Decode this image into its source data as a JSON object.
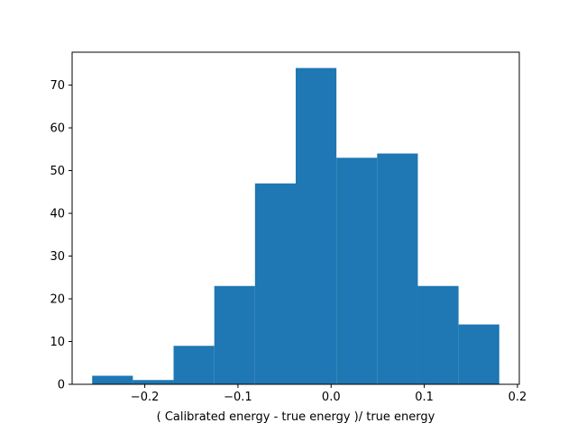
{
  "chart_data": {
    "type": "bar",
    "title": "",
    "xlabel": "( Calibrated energy - true energy )/ true energy",
    "ylabel": "",
    "bin_edges": [
      -0.2565,
      -0.2128,
      -0.1691,
      -0.1254,
      -0.0817,
      -0.038,
      0.0057,
      0.0494,
      0.0931,
      0.1368,
      0.1805
    ],
    "values": [
      2,
      1,
      9,
      23,
      47,
      74,
      53,
      54,
      23,
      14
    ],
    "xlim": [
      -0.278,
      0.202
    ],
    "ylim": [
      0,
      77.7
    ],
    "x_ticks": [
      -0.2,
      -0.1,
      0.0,
      0.1,
      0.2
    ],
    "x_tick_labels": [
      "−0.2",
      "−0.1",
      "0.0",
      "0.1",
      "0.2"
    ],
    "y_ticks": [
      0,
      10,
      20,
      30,
      40,
      50,
      60,
      70
    ],
    "y_tick_labels": [
      "0",
      "10",
      "20",
      "30",
      "40",
      "50",
      "60",
      "70"
    ],
    "grid": false,
    "bar_color": "#1f77b4"
  }
}
